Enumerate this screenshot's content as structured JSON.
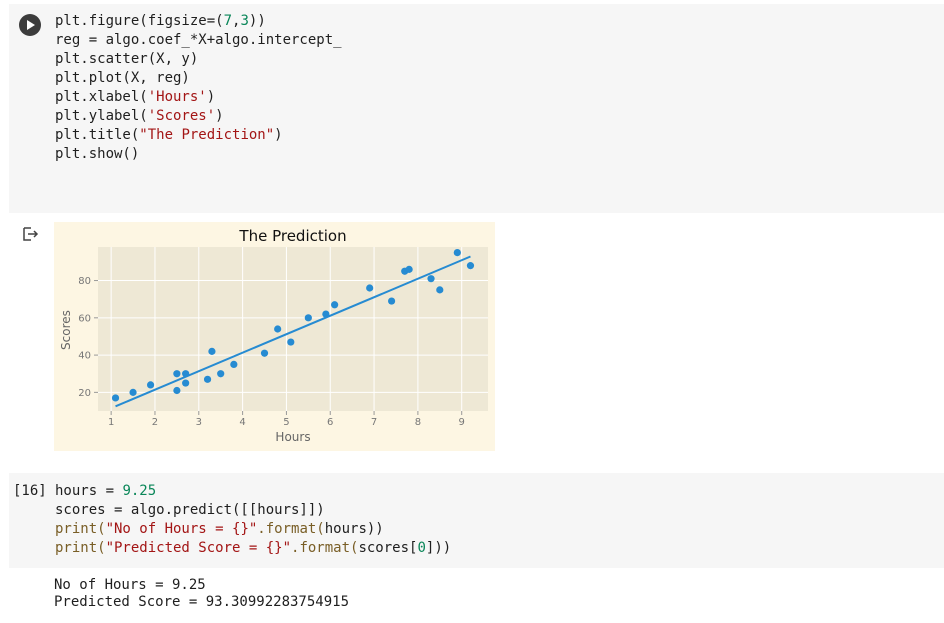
{
  "cells": [
    {
      "run_button": "play-icon",
      "code_lines": [
        [
          {
            "t": "plt.figure(figsize=("
          },
          {
            "t": "7",
            "c": "num"
          },
          {
            "t": ","
          },
          {
            "t": "3",
            "c": "num"
          },
          {
            "t": "))"
          }
        ],
        [
          {
            "t": "reg = algo.coef_*X+algo.intercept_"
          }
        ],
        [
          {
            "t": "plt.scatter(X, y)"
          }
        ],
        [
          {
            "t": "plt.plot(X, reg)"
          }
        ],
        [
          {
            "t": "plt.xlabel("
          },
          {
            "t": "'Hours'",
            "c": "str"
          },
          {
            "t": ")"
          }
        ],
        [
          {
            "t": "plt.ylabel("
          },
          {
            "t": "'Scores'",
            "c": "str"
          },
          {
            "t": ")"
          }
        ],
        [
          {
            "t": "plt.title("
          },
          {
            "t": "\"The Prediction\"",
            "c": "str"
          },
          {
            "t": ")"
          }
        ],
        [
          {
            "t": "plt.show()"
          }
        ]
      ]
    },
    {
      "execution_count": "[16]",
      "code_lines": [
        [
          {
            "t": "hours = "
          },
          {
            "t": "9.25",
            "c": "num"
          }
        ],
        [
          {
            "t": "scores = algo.predict([[hours]])"
          }
        ],
        [
          {
            "t": "print(",
            "c": "fn"
          },
          {
            "t": "\"No of Hours = {}\"",
            "c": "str"
          },
          {
            "t": ".format(",
            "c": "fn"
          },
          {
            "t": "hours))"
          }
        ],
        [
          {
            "t": "print(",
            "c": "fn"
          },
          {
            "t": "\"Predicted Score = {}\"",
            "c": "str"
          },
          {
            "t": ".format(",
            "c": "fn"
          },
          {
            "t": "scores["
          },
          {
            "t": "0",
            "c": "num"
          },
          {
            "t": "]))"
          }
        ]
      ],
      "output_lines": [
        "No of Hours = 9.25",
        "Predicted Score = 93.30992283754915"
      ]
    }
  ],
  "output_icon": "output-redirect-icon",
  "colors": {
    "figure_bg": "#fdf6e3",
    "axes_bg": "#eee8d5",
    "grid": "#ffffff",
    "series": "#268bd2",
    "cell_bg": "#f6f6f6"
  },
  "chart_data": {
    "type": "scatter",
    "title": "The Prediction",
    "xlabel": "Hours",
    "ylabel": "Scores",
    "xlim": [
      0.7,
      9.6
    ],
    "ylim": [
      10,
      98
    ],
    "xticks": [
      1,
      2,
      3,
      4,
      5,
      6,
      7,
      8,
      9
    ],
    "yticks": [
      20,
      40,
      60,
      80
    ],
    "grid": true,
    "series": [
      {
        "kind": "scatter",
        "x": [
          2.5,
          5.1,
          3.2,
          8.5,
          3.5,
          1.5,
          9.2,
          5.5,
          8.3,
          2.7,
          7.7,
          5.9,
          4.5,
          3.3,
          1.1,
          8.9,
          2.5,
          1.9,
          6.1,
          7.4,
          2.7,
          4.8,
          3.8,
          6.9,
          7.8
        ],
        "y": [
          21,
          47,
          27,
          75,
          30,
          20,
          88,
          60,
          81,
          25,
          85,
          62,
          41,
          42,
          17,
          95,
          30,
          24,
          67,
          69,
          30,
          54,
          35,
          76,
          86
        ]
      },
      {
        "kind": "line",
        "x": [
          1.1,
          9.2
        ],
        "y": [
          12.5,
          92.9
        ]
      }
    ]
  }
}
